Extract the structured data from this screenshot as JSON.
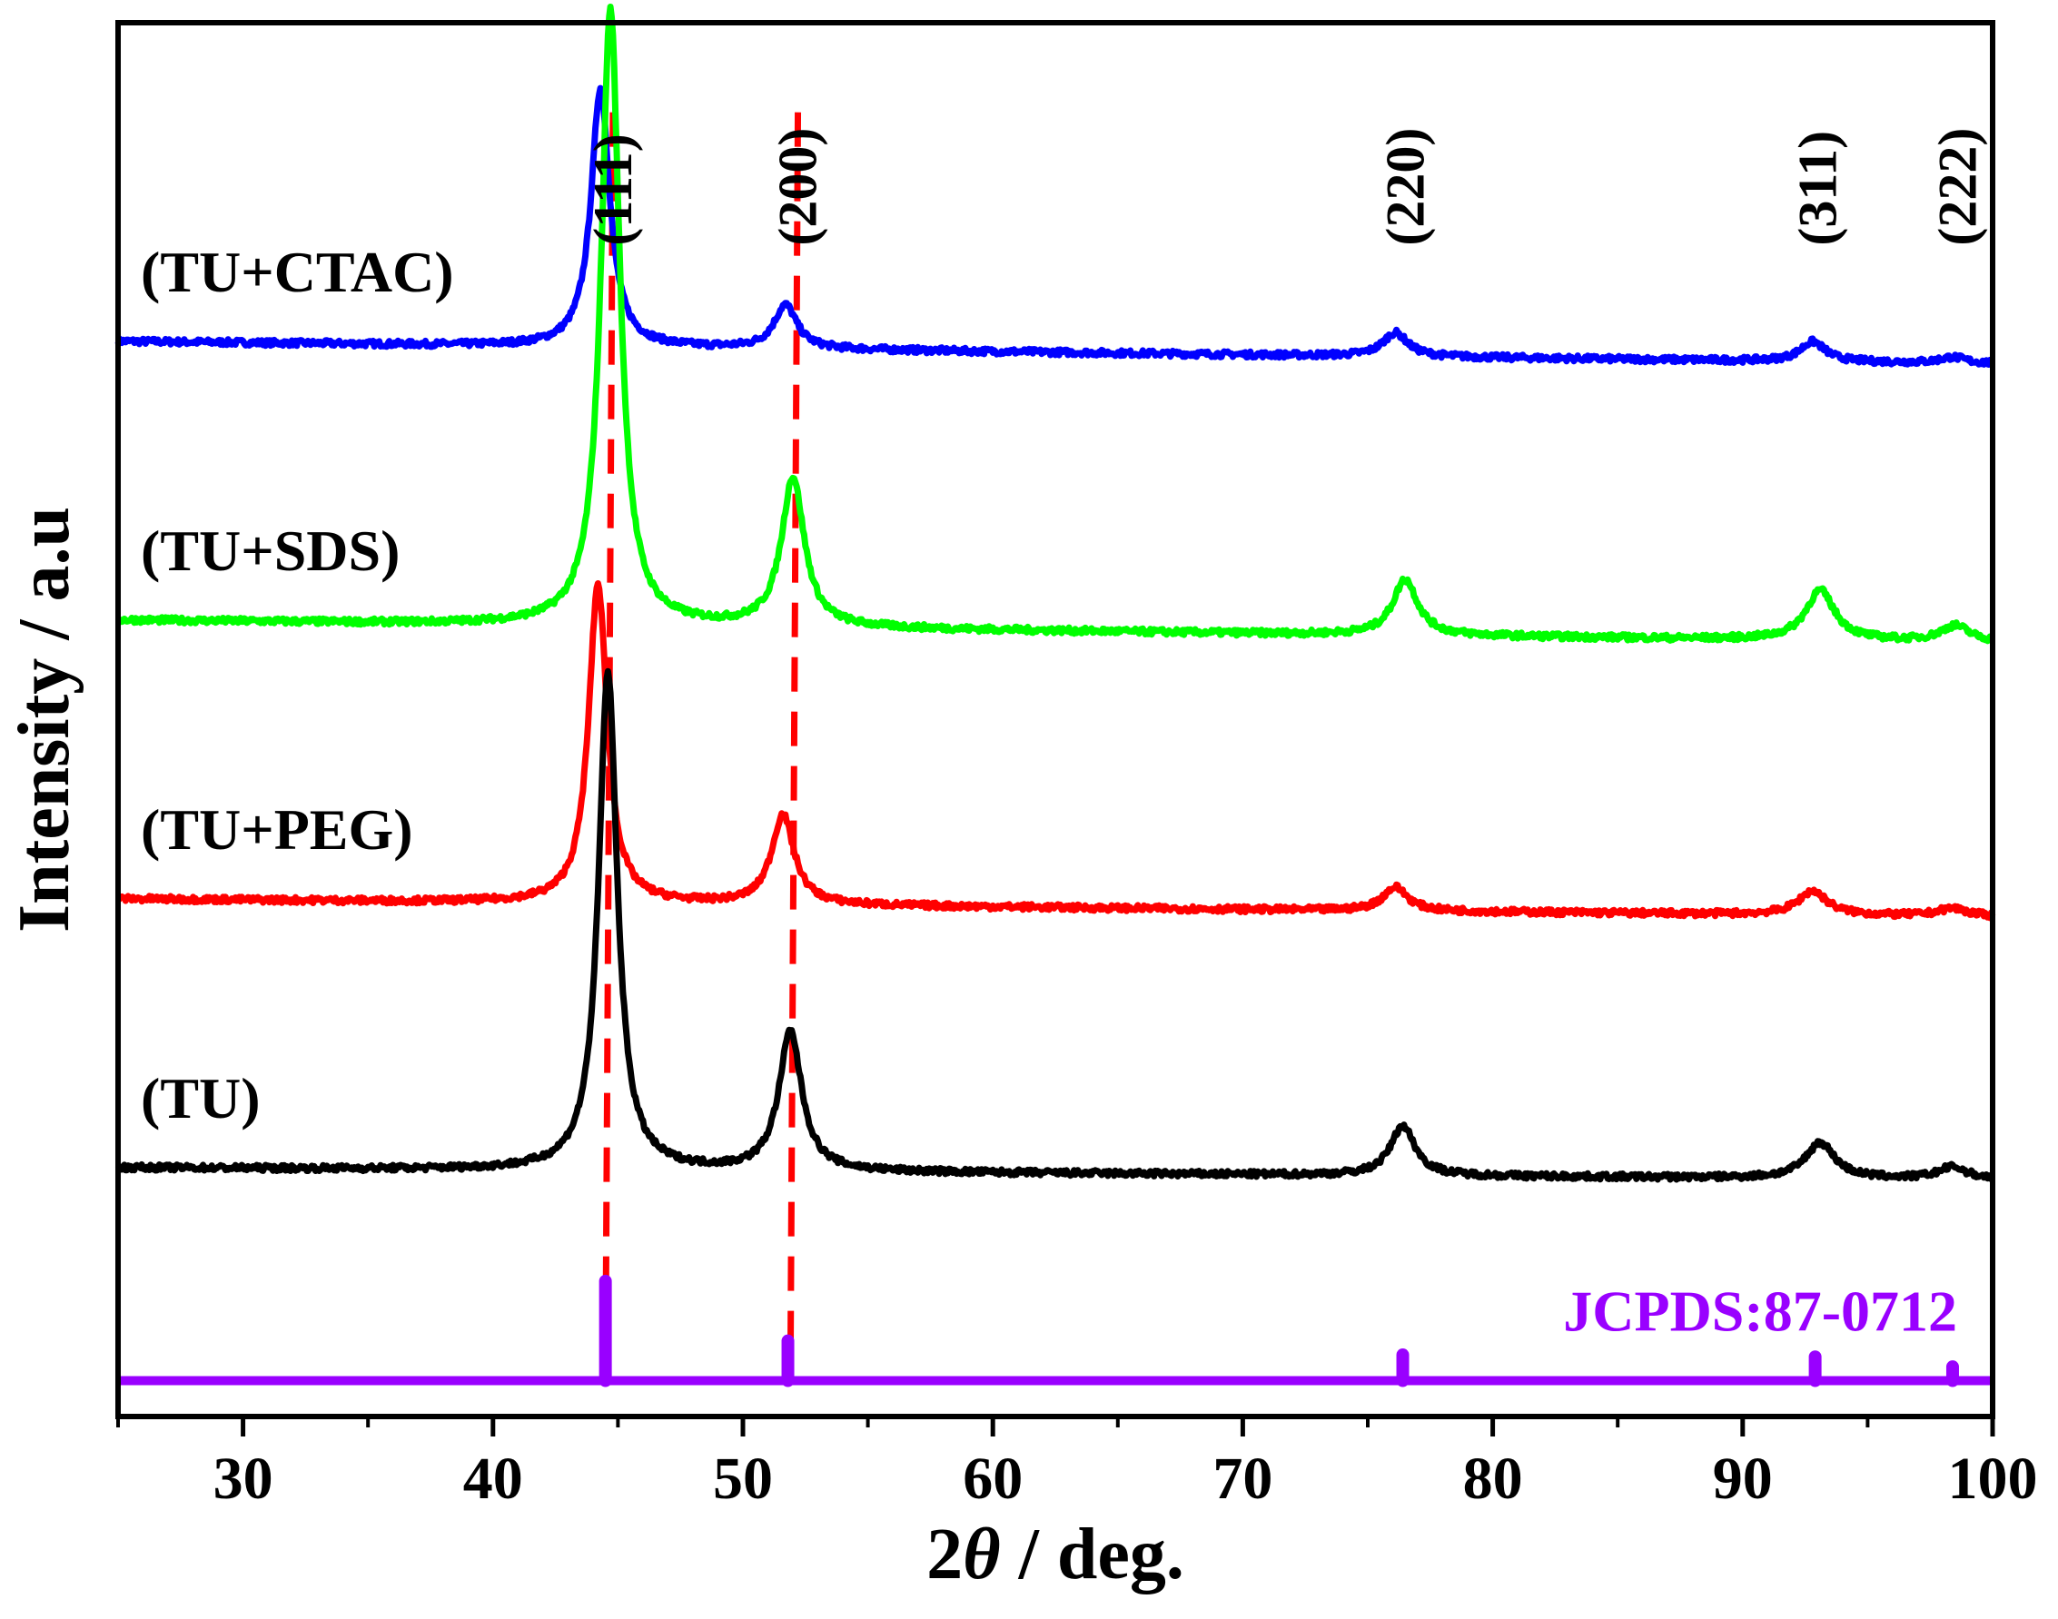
{
  "chart_data": {
    "type": "line",
    "title": "",
    "xlabel_prefix": "2",
    "xlabel_symbol": "θ",
    "xlabel_suffix": " / deg.",
    "ylabel": "Intensity / a.u",
    "xlim": [
      25,
      100
    ],
    "xticks": [
      30,
      40,
      50,
      60,
      70,
      80,
      90,
      100
    ],
    "xtick_labels": [
      "30",
      "40",
      "50",
      "60",
      "70",
      "80",
      "90",
      "100"
    ],
    "yticks_shown": false,
    "series": [
      {
        "name": "(TU+CTAC)",
        "color": "#0000ff",
        "baseline": 5.4,
        "slope": -0.0015,
        "peaks": [
          {
            "x": 44.3,
            "height": 1.3,
            "width": 0.45
          },
          {
            "x": 51.7,
            "height": 0.22,
            "width": 0.55
          },
          {
            "x": 76.1,
            "height": 0.12,
            "width": 0.6
          },
          {
            "x": 92.8,
            "height": 0.1,
            "width": 0.6
          },
          {
            "x": 98.4,
            "height": 0.03,
            "width": 0.6
          }
        ]
      },
      {
        "name": "(TU+SDS)",
        "color": "#00ff00",
        "baseline": 4.0,
        "slope": -0.0015,
        "peaks": [
          {
            "x": 44.7,
            "height": 3.1,
            "width": 0.45
          },
          {
            "x": 52.0,
            "height": 0.75,
            "width": 0.55
          },
          {
            "x": 76.5,
            "height": 0.28,
            "width": 0.6
          },
          {
            "x": 93.1,
            "height": 0.25,
            "width": 0.7
          },
          {
            "x": 98.5,
            "height": 0.08,
            "width": 0.7
          }
        ]
      },
      {
        "name": "(TU+PEG)",
        "color": "#ff0000",
        "baseline": 2.6,
        "slope": -0.0012,
        "peaks": [
          {
            "x": 44.2,
            "height": 1.6,
            "width": 0.45
          },
          {
            "x": 51.6,
            "height": 0.45,
            "width": 0.55
          },
          {
            "x": 76.1,
            "height": 0.12,
            "width": 0.6
          },
          {
            "x": 92.8,
            "height": 0.12,
            "width": 0.7
          },
          {
            "x": 98.4,
            "height": 0.04,
            "width": 0.7
          }
        ]
      },
      {
        "name": "(TU)",
        "color": "#000000",
        "baseline": 1.25,
        "slope": -0.0008,
        "peaks": [
          {
            "x": 44.6,
            "height": 2.5,
            "width": 0.45
          },
          {
            "x": 51.9,
            "height": 0.7,
            "width": 0.55
          },
          {
            "x": 76.4,
            "height": 0.25,
            "width": 0.6
          },
          {
            "x": 93.1,
            "height": 0.18,
            "width": 0.7
          },
          {
            "x": 98.4,
            "height": 0.06,
            "width": 0.7
          }
        ]
      }
    ],
    "reference": {
      "label": "JCPDS:87-0712",
      "color": "#9900ff",
      "baseline": 0.18,
      "lines": [
        {
          "x": 44.5,
          "height": 0.5
        },
        {
          "x": 51.8,
          "height": 0.2
        },
        {
          "x": 76.4,
          "height": 0.13
        },
        {
          "x": 92.9,
          "height": 0.12
        },
        {
          "x": 98.4,
          "height": 0.07
        }
      ]
    },
    "dashed_guides": {
      "color": "#ff0000",
      "lines": [
        {
          "x_top": 44.8,
          "x_bottom": 44.5
        },
        {
          "x_top": 52.2,
          "x_bottom": 51.9
        }
      ]
    },
    "peak_labels": [
      {
        "text": "(111)",
        "x": 44.8
      },
      {
        "text": "(200)",
        "x": 52.2
      },
      {
        "text": "(220)",
        "x": 76.5
      },
      {
        "text": "(311)",
        "x": 93.0
      },
      {
        "text": "(222)",
        "x": 98.6
      }
    ]
  }
}
